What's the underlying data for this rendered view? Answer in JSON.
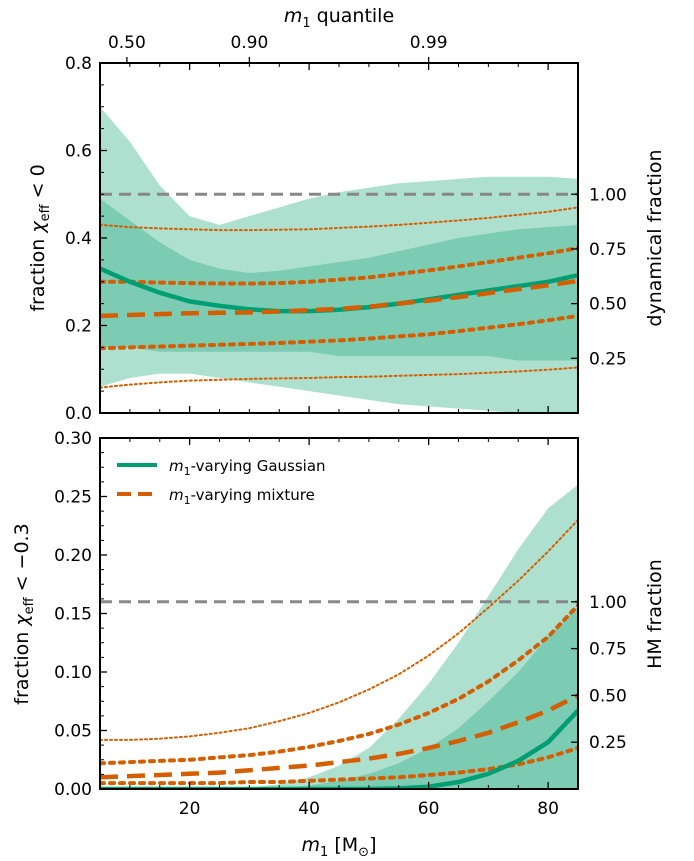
{
  "colors": {
    "gaussian": "#009E73",
    "mixture": "#D55E00",
    "band_outer": "#aee0d0",
    "band_inner": "#7ccbb3",
    "reference": "#888888"
  },
  "chart_data": [
    {
      "type": "line",
      "panel": "top",
      "ylabel": "fraction χ_eff < 0",
      "ylabel_main": "fraction ",
      "ylabel_sym": "χ",
      "ylabel_sub": "eff",
      "ylabel_tail": " < 0",
      "right_label": "dynamical fraction",
      "top_axis_label": "m₁ quantile",
      "top_axis_label_main": "m",
      "top_axis_label_sub": "1",
      "top_axis_label_tail": " quantile",
      "xlim": [
        5,
        85
      ],
      "ylim": [
        0,
        0.8
      ],
      "xticks": [
        20,
        40,
        60,
        80
      ],
      "yticks": [
        0.0,
        0.2,
        0.4,
        0.6,
        0.8
      ],
      "ytick_labels": [
        "0.0",
        "0.2",
        "0.4",
        "0.6",
        "0.8"
      ],
      "right_ticks": [
        {
          "label": "0.25",
          "y": 0.125
        },
        {
          "label": "0.50",
          "y": 0.25
        },
        {
          "label": "0.75",
          "y": 0.375
        },
        {
          "label": "1.00",
          "y": 0.5
        }
      ],
      "top_ticks": [
        {
          "label": "0.50",
          "x": 9.5
        },
        {
          "label": "0.90",
          "x": 30
        },
        {
          "label": "0.99",
          "x": 60
        }
      ],
      "reference_y": 0.5,
      "x": [
        5,
        10,
        15,
        20,
        25,
        30,
        35,
        40,
        45,
        50,
        55,
        60,
        65,
        70,
        75,
        80,
        85
      ],
      "band_outer_upper": [
        0.7,
        0.62,
        0.52,
        0.45,
        0.43,
        0.45,
        0.47,
        0.49,
        0.505,
        0.515,
        0.525,
        0.53,
        0.535,
        0.54,
        0.54,
        0.54,
        0.535
      ],
      "band_outer_lower": [
        0.06,
        0.08,
        0.09,
        0.09,
        0.08,
        0.07,
        0.06,
        0.05,
        0.04,
        0.03,
        0.02,
        0.015,
        0.01,
        0.005,
        0.0,
        0.0,
        0.0
      ],
      "band_inner_upper": [
        0.49,
        0.44,
        0.39,
        0.35,
        0.33,
        0.32,
        0.325,
        0.335,
        0.345,
        0.355,
        0.37,
        0.385,
        0.4,
        0.41,
        0.42,
        0.425,
        0.43
      ],
      "band_inner_lower": [
        0.15,
        0.15,
        0.14,
        0.14,
        0.14,
        0.14,
        0.14,
        0.14,
        0.13,
        0.13,
        0.13,
        0.13,
        0.13,
        0.13,
        0.12,
        0.12,
        0.12
      ],
      "series": [
        {
          "name": "m₁-varying Gaussian",
          "style": "solid",
          "values": [
            0.33,
            0.3,
            0.275,
            0.255,
            0.245,
            0.237,
            0.233,
            0.233,
            0.236,
            0.242,
            0.25,
            0.26,
            0.27,
            0.28,
            0.29,
            0.3,
            0.315
          ]
        },
        {
          "name": "m₁-varying mixture",
          "style": "dashed",
          "values": [
            0.222,
            0.224,
            0.226,
            0.228,
            0.229,
            0.23,
            0.232,
            0.235,
            0.238,
            0.243,
            0.25,
            0.257,
            0.265,
            0.274,
            0.283,
            0.292,
            0.302
          ]
        },
        {
          "style": "dotted-thick",
          "values": [
            0.3,
            0.3,
            0.298,
            0.297,
            0.296,
            0.296,
            0.297,
            0.3,
            0.305,
            0.31,
            0.318,
            0.326,
            0.335,
            0.345,
            0.355,
            0.365,
            0.377
          ]
        },
        {
          "style": "dotted-thick",
          "values": [
            0.148,
            0.15,
            0.152,
            0.154,
            0.156,
            0.158,
            0.16,
            0.163,
            0.166,
            0.17,
            0.175,
            0.18,
            0.187,
            0.195,
            0.203,
            0.212,
            0.222
          ]
        },
        {
          "style": "dotted-thin",
          "values": [
            0.43,
            0.425,
            0.422,
            0.42,
            0.418,
            0.418,
            0.419,
            0.42,
            0.423,
            0.426,
            0.43,
            0.435,
            0.44,
            0.446,
            0.453,
            0.46,
            0.47
          ]
        },
        {
          "style": "dotted-thin",
          "values": [
            0.058,
            0.065,
            0.07,
            0.074,
            0.076,
            0.078,
            0.079,
            0.08,
            0.082,
            0.083,
            0.085,
            0.087,
            0.089,
            0.092,
            0.095,
            0.099,
            0.104
          ]
        }
      ]
    },
    {
      "type": "line",
      "panel": "bottom",
      "xlabel": "m₁ [M⊙]",
      "xlabel_main": "m",
      "xlabel_sub": "1",
      "xlabel_tail": " [M",
      "xlabel_sym": "⊙",
      "xlabel_end": "]",
      "ylabel": "fraction χ_eff < −0.3",
      "ylabel_main": "fraction ",
      "ylabel_sym": "χ",
      "ylabel_sub": "eff",
      "ylabel_tail": " < −0.3",
      "right_label": "HM fraction",
      "xlim": [
        5,
        85
      ],
      "ylim": [
        0,
        0.3
      ],
      "xticks": [
        20,
        40,
        60,
        80
      ],
      "yticks": [
        0.0,
        0.05,
        0.1,
        0.15,
        0.2,
        0.25,
        0.3
      ],
      "ytick_labels": [
        "0.00",
        "0.05",
        "0.10",
        "0.15",
        "0.20",
        "0.25",
        "0.30"
      ],
      "right_ticks": [
        {
          "label": "0.25",
          "y": 0.04
        },
        {
          "label": "0.50",
          "y": 0.08
        },
        {
          "label": "0.75",
          "y": 0.12
        },
        {
          "label": "1.00",
          "y": 0.16
        }
      ],
      "reference_y": 0.16,
      "x": [
        5,
        10,
        15,
        20,
        25,
        30,
        35,
        40,
        45,
        50,
        55,
        60,
        65,
        70,
        75,
        80,
        85
      ],
      "band_outer_upper": [
        0,
        0,
        0,
        0,
        0,
        0.001,
        0.004,
        0.01,
        0.02,
        0.035,
        0.06,
        0.09,
        0.125,
        0.165,
        0.205,
        0.24,
        0.26
      ],
      "band_outer_lower": [
        0,
        0,
        0,
        0,
        0,
        0,
        0,
        0,
        0,
        0,
        0,
        0,
        0,
        0,
        0,
        0,
        0
      ],
      "band_inner_upper": [
        0,
        0,
        0,
        0,
        0,
        0,
        0.001,
        0.003,
        0.007,
        0.013,
        0.022,
        0.035,
        0.052,
        0.075,
        0.1,
        0.13,
        0.155
      ],
      "band_inner_lower": [
        0,
        0,
        0,
        0,
        0,
        0,
        0,
        0,
        0,
        0,
        0,
        0,
        0,
        0,
        0,
        0,
        0
      ],
      "legend": [
        {
          "label_main": "m",
          "label_sub": "1",
          "label_tail": "-varying Gaussian",
          "style": "solid"
        },
        {
          "label_main": "m",
          "label_sub": "1",
          "label_tail": "-varying mixture",
          "style": "dashed"
        }
      ],
      "series": [
        {
          "name": "m₁-varying Gaussian",
          "style": "solid",
          "values": [
            0,
            0,
            0,
            0,
            0,
            0,
            0,
            0,
            0,
            0,
            0.0005,
            0.002,
            0.006,
            0.013,
            0.024,
            0.04,
            0.067
          ]
        },
        {
          "name": "m₁-varying mixture",
          "style": "dashed",
          "values": [
            0.01,
            0.011,
            0.012,
            0.013,
            0.014,
            0.016,
            0.018,
            0.02,
            0.023,
            0.026,
            0.03,
            0.035,
            0.041,
            0.048,
            0.057,
            0.067,
            0.08
          ]
        },
        {
          "style": "dotted-thick",
          "values": [
            0.022,
            0.023,
            0.024,
            0.025,
            0.027,
            0.029,
            0.032,
            0.036,
            0.041,
            0.047,
            0.055,
            0.065,
            0.077,
            0.092,
            0.11,
            0.13,
            0.157
          ]
        },
        {
          "style": "dotted-thick",
          "values": [
            0.005,
            0.005,
            0.005,
            0.005,
            0.005,
            0.006,
            0.006,
            0.007,
            0.008,
            0.009,
            0.01,
            0.012,
            0.014,
            0.017,
            0.021,
            0.027,
            0.035
          ]
        },
        {
          "style": "dotted-thin",
          "values": [
            0.042,
            0.042,
            0.043,
            0.045,
            0.048,
            0.052,
            0.058,
            0.065,
            0.074,
            0.085,
            0.098,
            0.114,
            0.133,
            0.155,
            0.178,
            0.203,
            0.23
          ]
        }
      ]
    }
  ]
}
